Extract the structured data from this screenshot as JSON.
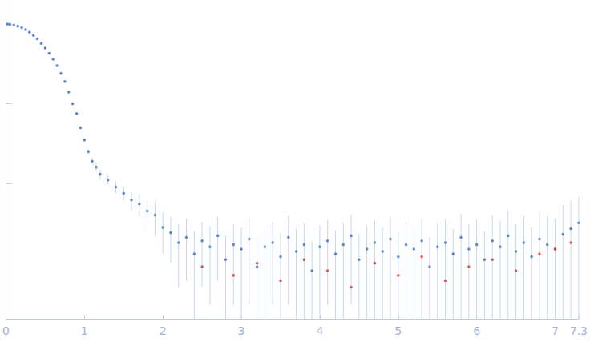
{
  "chart_data": {
    "type": "scatter",
    "log": "y",
    "grid": false,
    "tick_labels": "x",
    "xlim": [
      0,
      7.3
    ],
    "xticks": [
      0,
      1,
      2,
      3,
      4,
      5,
      6,
      7
    ],
    "ylim": [
      0.0002,
      2
    ],
    "yticks": [
      0.01,
      0.1,
      1
    ],
    "series": [
      {
        "color": "#3f6fc1",
        "marker": "circle",
        "x": [
          0.02,
          0.05,
          0.1,
          0.15,
          0.2,
          0.25,
          0.3,
          0.35,
          0.4,
          0.45,
          0.5,
          0.55,
          0.6,
          0.65,
          0.7,
          0.75,
          0.8,
          0.85,
          0.9,
          0.95,
          1.0,
          1.05,
          1.1,
          1.15,
          1.2,
          1.3,
          1.4,
          1.5,
          1.6,
          1.7,
          1.8,
          1.9,
          2.0,
          2.1,
          2.2,
          2.3,
          2.4,
          2.5,
          2.6,
          2.7,
          2.8,
          2.9,
          3.0,
          3.1,
          3.2,
          3.3,
          3.4,
          3.5,
          3.6,
          3.7,
          3.8,
          3.9,
          4.0,
          4.1,
          4.2,
          4.3,
          4.4,
          4.5,
          4.6,
          4.7,
          4.8,
          4.9,
          5.0,
          5.1,
          5.2,
          5.3,
          5.4,
          5.5,
          5.6,
          5.7,
          5.8,
          5.9,
          6.0,
          6.1,
          6.2,
          6.3,
          6.4,
          6.5,
          6.6,
          6.7,
          6.8,
          6.9,
          7.0,
          7.1,
          7.2,
          7.3
        ],
        "values": [
          1.0,
          0.99,
          0.97,
          0.94,
          0.9,
          0.85,
          0.79,
          0.72,
          0.65,
          0.57,
          0.5,
          0.43,
          0.36,
          0.3,
          0.24,
          0.19,
          0.14,
          0.1,
          0.075,
          0.05,
          0.035,
          0.025,
          0.019,
          0.016,
          0.013,
          0.011,
          0.009,
          0.0075,
          0.0062,
          0.0055,
          0.0045,
          0.004,
          0.0028,
          0.0024,
          0.0018,
          0.0021,
          0.0013,
          0.0019,
          0.0016,
          0.0022,
          0.0011,
          0.0017,
          0.0015,
          0.002,
          0.0009,
          0.0016,
          0.0018,
          0.0012,
          0.0021,
          0.0014,
          0.0017,
          0.0008,
          0.0016,
          0.0019,
          0.0013,
          0.0017,
          0.0022,
          0.0011,
          0.0015,
          0.0018,
          0.0014,
          0.002,
          0.0012,
          0.0017,
          0.0015,
          0.0019,
          0.0009,
          0.0016,
          0.0018,
          0.0013,
          0.0021,
          0.0015,
          0.0017,
          0.0011,
          0.0019,
          0.0016,
          0.0022,
          0.0014,
          0.0018,
          0.0012,
          0.002,
          0.0017,
          0.0015,
          0.0023,
          0.0027,
          0.0032
        ],
        "errors": [
          0.01,
          0.01,
          0.01,
          0.01,
          0.01,
          0.01,
          0.01,
          0.01,
          0.01,
          0.01,
          0.01,
          0.005,
          0.005,
          0.005,
          0.005,
          0.005,
          0.005,
          0.005,
          0.002,
          0.002,
          0.002,
          0.002,
          0.002,
          0.002,
          0.002,
          0.0015,
          0.0015,
          0.0015,
          0.0016,
          0.0017,
          0.0018,
          0.0018,
          0.0015,
          0.0014,
          0.0013,
          0.0015,
          0.0012,
          0.0014,
          0.0013,
          0.0016,
          0.0011,
          0.0014,
          0.0013,
          0.0017,
          0.0012,
          0.0014,
          0.0015,
          0.0012,
          0.0018,
          0.0013,
          0.0015,
          0.0011,
          0.0014,
          0.0016,
          0.0013,
          0.0015,
          0.0019,
          0.0012,
          0.0014,
          0.0016,
          0.0014,
          0.0018,
          0.0013,
          0.0016,
          0.0015,
          0.0018,
          0.0012,
          0.0016,
          0.0017,
          0.0014,
          0.002,
          0.0016,
          0.0018,
          0.0014,
          0.002,
          0.0018,
          0.0024,
          0.0017,
          0.0021,
          0.0016,
          0.0024,
          0.0022,
          0.0021,
          0.003,
          0.0034,
          0.0035
        ]
      },
      {
        "color": "#e0302a",
        "marker": "circle",
        "x": [
          2.5,
          2.9,
          3.2,
          3.5,
          3.8,
          4.1,
          4.4,
          4.7,
          5.0,
          5.3,
          5.6,
          5.9,
          6.2,
          6.5,
          6.8,
          7.0,
          7.2
        ],
        "values": [
          0.0009,
          0.0007,
          0.001,
          0.0006,
          0.0011,
          0.0008,
          0.0005,
          0.001,
          0.0007,
          0.0012,
          0.0006,
          0.0009,
          0.0011,
          0.0008,
          0.0013,
          0.0015,
          0.0018
        ]
      }
    ]
  }
}
